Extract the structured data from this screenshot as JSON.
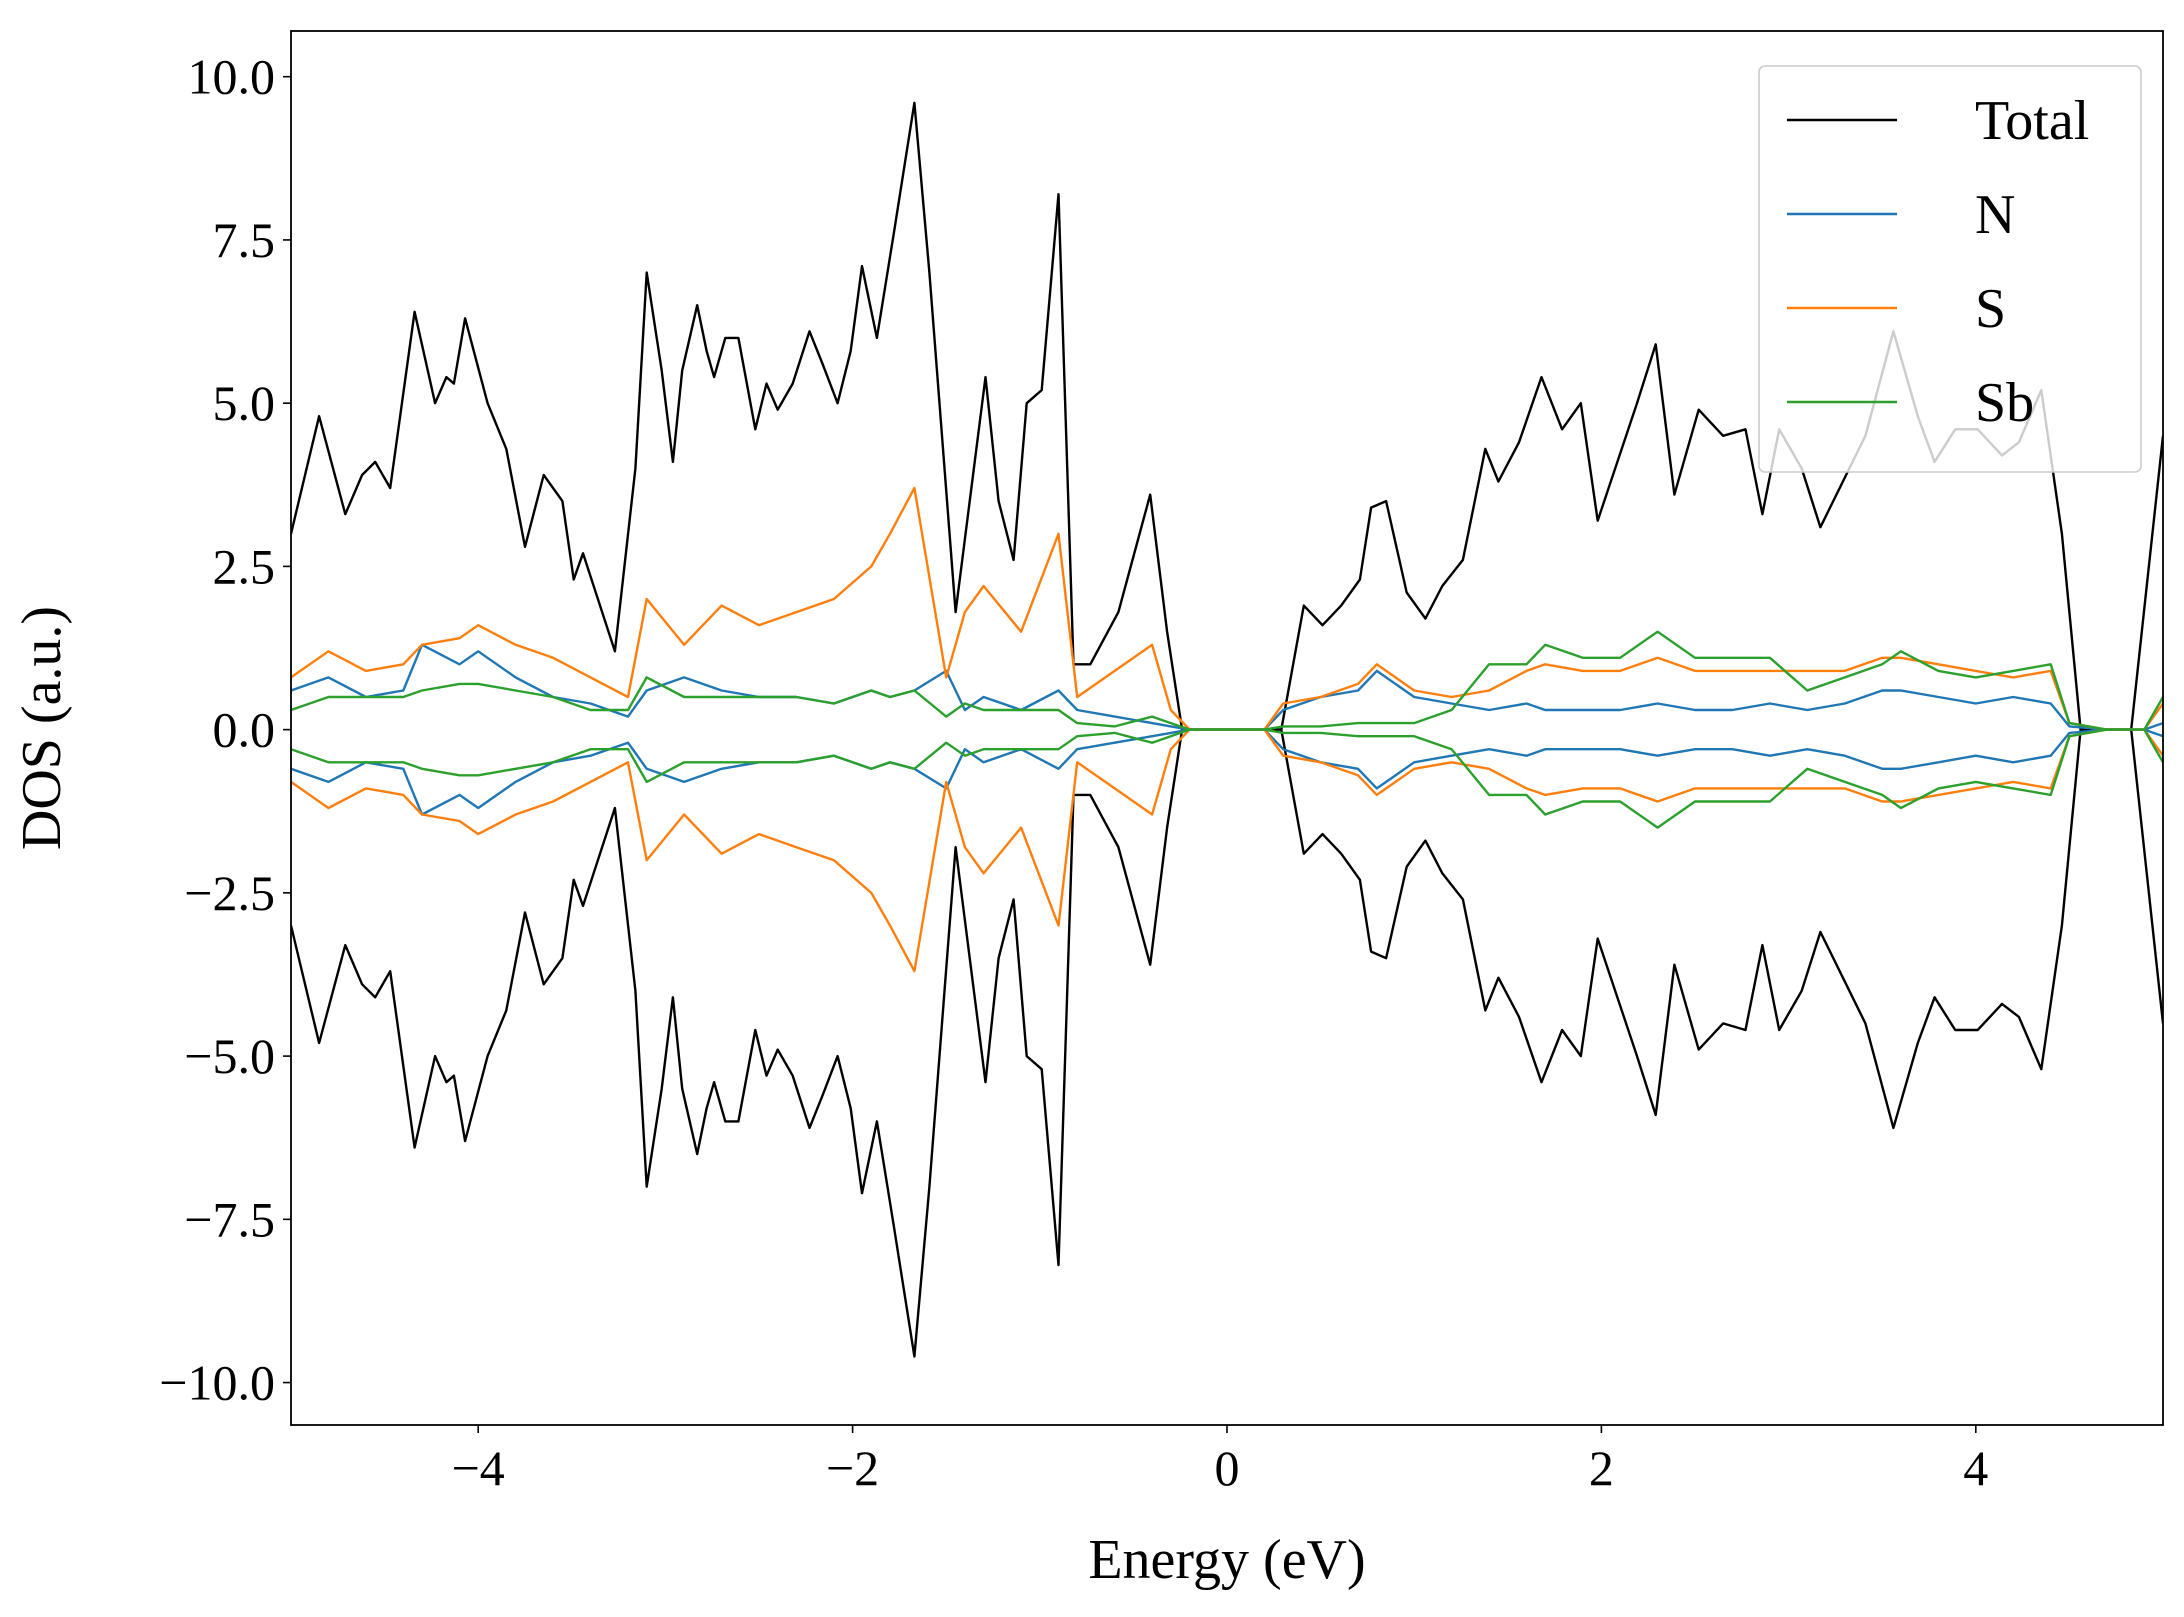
{
  "chart_data": {
    "type": "line",
    "xlabel": "Energy (eV)",
    "ylabel": "DOS (a.u.)",
    "xlim": [
      -5,
      5
    ],
    "ylim": [
      -10.65,
      10.7
    ],
    "xticks": [
      {
        "value": -4,
        "label": "−4"
      },
      {
        "value": -2,
        "label": "−2"
      },
      0,
      2,
      4
    ],
    "yticks": [
      {
        "value": -10,
        "label": "−10.0"
      },
      {
        "value": -7.5,
        "label": "−7.5"
      },
      {
        "value": -5,
        "label": "−5.0"
      },
      {
        "value": -2.5,
        "label": "−2.5"
      },
      {
        "value": 0,
        "label": "0.0"
      },
      {
        "value": 2.5,
        "label": "2.5"
      },
      {
        "value": 5,
        "label": "5.0"
      },
      {
        "value": 7.5,
        "label": "7.5"
      },
      {
        "value": 10,
        "label": "10.0"
      }
    ],
    "legend": "upper right",
    "x": [
      -5.0,
      -4.8,
      -4.6,
      -4.4,
      -4.3,
      -4.1,
      -4.0,
      -3.8,
      -3.6,
      -3.4,
      -3.2,
      -3.1,
      -2.9,
      -2.7,
      -2.5,
      -2.3,
      -2.1,
      -1.9,
      -1.8,
      -1.67,
      -1.5,
      -1.4,
      -1.3,
      -1.1,
      -0.9,
      -0.8,
      -0.6,
      -0.4,
      -0.3,
      -0.2,
      0,
      0.2,
      0.3,
      0.5,
      0.7,
      0.8,
      1.0,
      1.2,
      1.4,
      1.6,
      1.7,
      1.9,
      2.1,
      2.3,
      2.5,
      2.7,
      2.9,
      3.1,
      3.3,
      3.5,
      3.6,
      3.8,
      4.0,
      4.2,
      4.4,
      4.5,
      4.7,
      4.9,
      5.0
    ],
    "series": [
      {
        "name": "Total",
        "color": "#000000",
        "x": [
          -5.0,
          -4.85,
          -4.71,
          -4.62,
          -4.55,
          -4.47,
          -4.34,
          -4.23,
          -4.17,
          -4.13,
          -4.07,
          -3.95,
          -3.85,
          -3.75,
          -3.65,
          -3.55,
          -3.49,
          -3.44,
          -3.27,
          -3.16,
          -3.1,
          -3.02,
          -2.96,
          -2.91,
          -2.83,
          -2.78,
          -2.74,
          -2.68,
          -2.61,
          -2.52,
          -2.46,
          -2.4,
          -2.32,
          -2.23,
          -2.16,
          -2.08,
          -2.01,
          -1.95,
          -1.87,
          -1.78,
          -1.67,
          -1.59,
          -1.45,
          -1.29,
          -1.22,
          -1.14,
          -1.07,
          -0.99,
          -0.9,
          -0.82,
          -0.73,
          -0.58,
          -0.41,
          -0.32,
          -0.24,
          0,
          0.29,
          0.41,
          0.51,
          0.61,
          0.71,
          0.77,
          0.85,
          0.96,
          1.06,
          1.15,
          1.26,
          1.38,
          1.45,
          1.56,
          1.68,
          1.79,
          1.89,
          1.98,
          2.05,
          2.19,
          2.29,
          2.39,
          2.52,
          2.65,
          2.77,
          2.86,
          2.95,
          3.07,
          3.17,
          3.29,
          3.41,
          3.56,
          3.69,
          3.78,
          3.89,
          4.01,
          4.14,
          4.23,
          4.35,
          4.46,
          4.56,
          4.83,
          5.0
        ],
        "values": [
          3.0,
          4.8,
          3.3,
          3.9,
          4.1,
          3.7,
          6.4,
          5.0,
          5.4,
          5.3,
          6.3,
          5.0,
          4.3,
          2.8,
          3.9,
          3.5,
          2.3,
          2.7,
          1.2,
          4.0,
          7.0,
          5.5,
          4.1,
          5.5,
          6.5,
          5.8,
          5.4,
          6.0,
          6.0,
          4.6,
          5.3,
          4.9,
          5.3,
          6.1,
          5.6,
          5.0,
          5.8,
          7.1,
          6.0,
          7.6,
          9.6,
          7.0,
          1.8,
          5.4,
          3.5,
          2.6,
          5.0,
          5.2,
          8.2,
          1.0,
          1.0,
          1.8,
          3.6,
          1.5,
          0.0,
          0.0,
          0.0,
          1.9,
          1.6,
          1.9,
          2.3,
          3.4,
          3.5,
          2.1,
          1.7,
          2.2,
          2.6,
          4.3,
          3.8,
          4.4,
          5.4,
          4.6,
          5.0,
          3.2,
          3.8,
          5.0,
          5.9,
          3.6,
          4.9,
          4.5,
          4.6,
          3.3,
          4.6,
          4.0,
          3.1,
          3.8,
          4.5,
          6.1,
          4.8,
          4.1,
          4.6,
          4.6,
          4.2,
          4.4,
          5.2,
          3.0,
          0.0,
          0.0,
          4.5
        ],
        "values_down": [
          -3.0,
          -4.8,
          -3.3,
          -3.9,
          -4.1,
          -3.7,
          -6.4,
          -5.0,
          -5.4,
          -5.3,
          -6.3,
          -5.0,
          -4.3,
          -2.8,
          -3.9,
          -3.5,
          -2.3,
          -2.7,
          -1.2,
          -4.0,
          -7.0,
          -5.5,
          -4.1,
          -5.5,
          -6.5,
          -5.8,
          -5.4,
          -6.0,
          -6.0,
          -4.6,
          -5.3,
          -4.9,
          -5.3,
          -6.1,
          -5.6,
          -5.0,
          -5.8,
          -7.1,
          -6.0,
          -7.6,
          -9.6,
          -7.0,
          -1.8,
          -5.4,
          -3.5,
          -2.6,
          -5.0,
          -5.2,
          -8.2,
          -1.0,
          -1.0,
          -1.8,
          -3.6,
          -1.5,
          0.0,
          0.0,
          0.0,
          -1.9,
          -1.6,
          -1.9,
          -2.3,
          -3.4,
          -3.5,
          -2.1,
          -1.7,
          -2.2,
          -2.6,
          -4.3,
          -3.8,
          -4.4,
          -5.4,
          -4.6,
          -5.0,
          -3.2,
          -3.8,
          -5.0,
          -5.9,
          -3.6,
          -4.9,
          -4.5,
          -4.6,
          -3.3,
          -4.6,
          -4.0,
          -3.1,
          -3.8,
          -4.5,
          -6.1,
          -4.8,
          -4.1,
          -4.6,
          -4.6,
          -4.2,
          -4.4,
          -5.2,
          -3.0,
          0.0,
          0.0,
          -4.5
        ]
      },
      {
        "name": "N",
        "color": "#1f77b4",
        "values": [
          0.6,
          0.8,
          0.5,
          0.6,
          1.3,
          1.0,
          1.2,
          0.8,
          0.5,
          0.4,
          0.2,
          0.6,
          0.8,
          0.6,
          0.5,
          0.5,
          0.4,
          0.6,
          0.5,
          0.6,
          0.9,
          0.3,
          0.5,
          0.3,
          0.6,
          0.3,
          0.2,
          0.1,
          0.05,
          0,
          0,
          0,
          0.3,
          0.5,
          0.6,
          0.9,
          0.5,
          0.4,
          0.3,
          0.4,
          0.3,
          0.3,
          0.3,
          0.4,
          0.3,
          0.3,
          0.4,
          0.3,
          0.4,
          0.6,
          0.6,
          0.5,
          0.4,
          0.5,
          0.4,
          0.05,
          0,
          0,
          0.1
        ],
        "values_down": [
          -0.6,
          -0.8,
          -0.5,
          -0.6,
          -1.3,
          -1.0,
          -1.2,
          -0.8,
          -0.5,
          -0.4,
          -0.2,
          -0.6,
          -0.8,
          -0.6,
          -0.5,
          -0.5,
          -0.4,
          -0.6,
          -0.5,
          -0.6,
          -0.9,
          -0.3,
          -0.5,
          -0.3,
          -0.6,
          -0.3,
          -0.2,
          -0.1,
          -0.05,
          0,
          0,
          0,
          -0.3,
          -0.5,
          -0.6,
          -0.9,
          -0.5,
          -0.4,
          -0.3,
          -0.4,
          -0.3,
          -0.3,
          -0.3,
          -0.4,
          -0.3,
          -0.3,
          -0.4,
          -0.3,
          -0.4,
          -0.6,
          -0.6,
          -0.5,
          -0.4,
          -0.5,
          -0.4,
          -0.05,
          0,
          0,
          -0.1
        ]
      },
      {
        "name": "S",
        "color": "#ff7f0e",
        "values": [
          0.8,
          1.2,
          0.9,
          1.0,
          1.3,
          1.4,
          1.6,
          1.3,
          1.1,
          0.8,
          0.5,
          2.0,
          1.3,
          1.9,
          1.6,
          1.8,
          2.0,
          2.5,
          3.0,
          3.7,
          0.8,
          1.8,
          2.2,
          1.5,
          3.0,
          0.5,
          0.9,
          1.3,
          0.3,
          0,
          0,
          0,
          0.4,
          0.5,
          0.7,
          1.0,
          0.6,
          0.5,
          0.6,
          0.9,
          1.0,
          0.9,
          0.9,
          1.1,
          0.9,
          0.9,
          0.9,
          0.9,
          0.9,
          1.1,
          1.1,
          1.0,
          0.9,
          0.8,
          0.9,
          0.1,
          0,
          0,
          0.4
        ],
        "values_down": [
          -0.8,
          -1.2,
          -0.9,
          -1.0,
          -1.3,
          -1.4,
          -1.6,
          -1.3,
          -1.1,
          -0.8,
          -0.5,
          -2.0,
          -1.3,
          -1.9,
          -1.6,
          -1.8,
          -2.0,
          -2.5,
          -3.0,
          -3.7,
          -0.8,
          -1.8,
          -2.2,
          -1.5,
          -3.0,
          -0.5,
          -0.9,
          -1.3,
          -0.3,
          0,
          0,
          0,
          -0.4,
          -0.5,
          -0.7,
          -1.0,
          -0.6,
          -0.5,
          -0.6,
          -0.9,
          -1.0,
          -0.9,
          -0.9,
          -1.1,
          -0.9,
          -0.9,
          -0.9,
          -0.9,
          -0.9,
          -1.1,
          -1.1,
          -1.0,
          -0.9,
          -0.8,
          -0.9,
          -0.1,
          0,
          0,
          -0.4
        ]
      },
      {
        "name": "Sb",
        "color": "#2ca02c",
        "values": [
          0.3,
          0.5,
          0.5,
          0.5,
          0.6,
          0.7,
          0.7,
          0.6,
          0.5,
          0.3,
          0.3,
          0.8,
          0.5,
          0.5,
          0.5,
          0.5,
          0.4,
          0.6,
          0.5,
          0.6,
          0.2,
          0.4,
          0.3,
          0.3,
          0.3,
          0.1,
          0.05,
          0.2,
          0.1,
          0,
          0,
          0,
          0.05,
          0.05,
          0.1,
          0.1,
          0.1,
          0.3,
          1.0,
          1.0,
          1.3,
          1.1,
          1.1,
          1.5,
          1.1,
          1.1,
          1.1,
          0.6,
          0.8,
          1.0,
          1.2,
          0.9,
          0.8,
          0.9,
          1.0,
          0.1,
          0,
          0,
          0.5
        ],
        "values_down": [
          -0.3,
          -0.5,
          -0.5,
          -0.5,
          -0.6,
          -0.7,
          -0.7,
          -0.6,
          -0.5,
          -0.3,
          -0.3,
          -0.8,
          -0.5,
          -0.5,
          -0.5,
          -0.5,
          -0.4,
          -0.6,
          -0.5,
          -0.6,
          -0.2,
          -0.4,
          -0.3,
          -0.3,
          -0.3,
          -0.1,
          -0.05,
          -0.2,
          -0.1,
          0,
          0,
          0,
          -0.05,
          -0.05,
          -0.1,
          -0.1,
          -0.1,
          -0.3,
          -1.0,
          -1.0,
          -1.3,
          -1.1,
          -1.1,
          -1.5,
          -1.1,
          -1.1,
          -1.1,
          -0.6,
          -0.8,
          -1.0,
          -1.2,
          -0.9,
          -0.8,
          -0.9,
          -1.0,
          -0.1,
          0,
          0,
          -0.5
        ]
      }
    ]
  }
}
